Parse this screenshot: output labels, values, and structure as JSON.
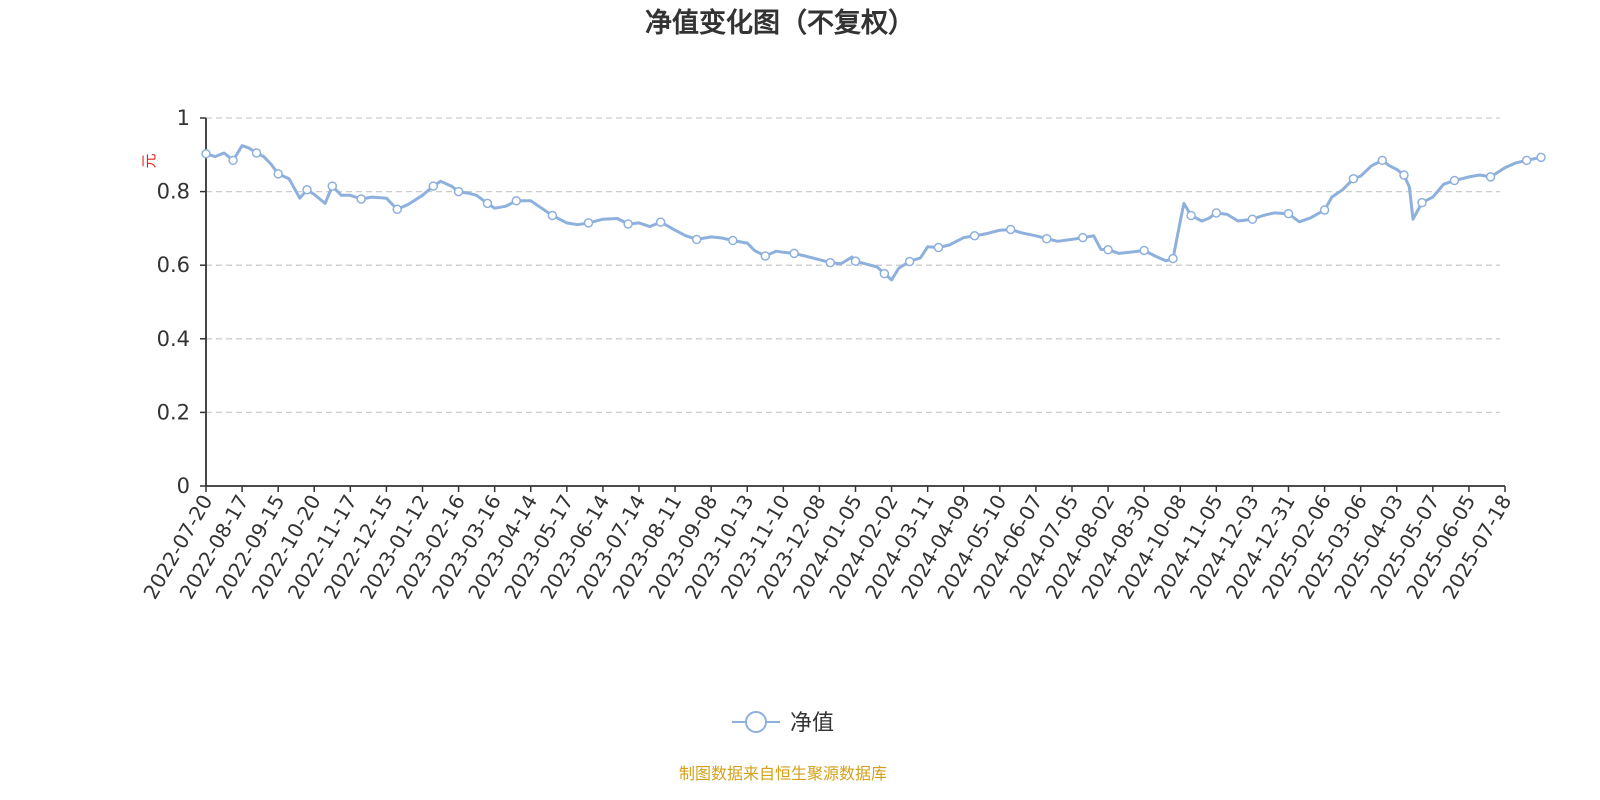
{
  "chart_data": {
    "type": "line",
    "title": "净值变化图（不复权）",
    "ylabel": "元",
    "ylim": [
      0,
      1
    ],
    "yticks": [
      "0",
      "0.2",
      "0.4",
      "0.6",
      "0.8",
      "1"
    ],
    "grid": true,
    "legend_position": "bottom",
    "categories": [
      "2022-07-20",
      "2022-08-17",
      "2022-09-15",
      "2022-10-20",
      "2022-11-17",
      "2022-12-15",
      "2023-01-12",
      "2023-02-16",
      "2023-03-16",
      "2023-04-14",
      "2023-05-17",
      "2023-06-14",
      "2023-07-14",
      "2023-08-11",
      "2023-09-08",
      "2023-10-13",
      "2023-11-10",
      "2023-12-08",
      "2024-01-05",
      "2024-02-02",
      "2024-03-11",
      "2024-04-09",
      "2024-05-10",
      "2024-06-07",
      "2024-07-05",
      "2024-08-02",
      "2024-08-30",
      "2024-10-08",
      "2024-11-05",
      "2024-12-03",
      "2024-12-31",
      "2025-02-06",
      "2025-03-06",
      "2025-04-03",
      "2025-05-07",
      "2025-06-05",
      "2025-07-18"
    ],
    "series": [
      {
        "name": "净值",
        "color": "#8eb0dc",
        "values": [
          [
            0,
            0.903
          ],
          [
            0.25,
            0.895
          ],
          [
            0.5,
            0.905
          ],
          [
            0.75,
            0.885
          ],
          [
            1,
            0.925
          ],
          [
            1.2,
            0.918
          ],
          [
            1.4,
            0.905
          ],
          [
            1.6,
            0.895
          ],
          [
            1.8,
            0.875
          ],
          [
            2,
            0.848
          ],
          [
            2.3,
            0.835
          ],
          [
            2.6,
            0.782
          ],
          [
            2.8,
            0.805
          ],
          [
            3,
            0.792
          ],
          [
            3.3,
            0.768
          ],
          [
            3.5,
            0.815
          ],
          [
            3.75,
            0.79
          ],
          [
            4,
            0.79
          ],
          [
            4.3,
            0.78
          ],
          [
            4.6,
            0.785
          ],
          [
            5,
            0.782
          ],
          [
            5.3,
            0.752
          ],
          [
            5.6,
            0.765
          ],
          [
            6,
            0.79
          ],
          [
            6.3,
            0.815
          ],
          [
            6.5,
            0.828
          ],
          [
            6.8,
            0.815
          ],
          [
            7,
            0.8
          ],
          [
            7.3,
            0.795
          ],
          [
            7.5,
            0.79
          ],
          [
            7.8,
            0.768
          ],
          [
            8,
            0.755
          ],
          [
            8.3,
            0.76
          ],
          [
            8.6,
            0.775
          ],
          [
            9,
            0.775
          ],
          [
            9.3,
            0.755
          ],
          [
            9.6,
            0.735
          ],
          [
            10,
            0.715
          ],
          [
            10.3,
            0.71
          ],
          [
            10.6,
            0.715
          ],
          [
            11,
            0.725
          ],
          [
            11.4,
            0.727
          ],
          [
            11.7,
            0.712
          ],
          [
            12,
            0.715
          ],
          [
            12.3,
            0.705
          ],
          [
            12.6,
            0.717
          ],
          [
            13,
            0.695
          ],
          [
            13.3,
            0.68
          ],
          [
            13.6,
            0.67
          ],
          [
            14,
            0.677
          ],
          [
            14.3,
            0.674
          ],
          [
            14.6,
            0.667
          ],
          [
            15,
            0.66
          ],
          [
            15.2,
            0.64
          ],
          [
            15.5,
            0.625
          ],
          [
            15.8,
            0.638
          ],
          [
            16,
            0.635
          ],
          [
            16.3,
            0.632
          ],
          [
            16.6,
            0.625
          ],
          [
            17,
            0.615
          ],
          [
            17.3,
            0.607
          ],
          [
            17.6,
            0.604
          ],
          [
            17.9,
            0.622
          ],
          [
            18,
            0.611
          ],
          [
            18.3,
            0.603
          ],
          [
            18.6,
            0.595
          ],
          [
            18.8,
            0.577
          ],
          [
            19,
            0.56
          ],
          [
            19.2,
            0.592
          ],
          [
            19.5,
            0.61
          ],
          [
            19.8,
            0.62
          ],
          [
            20,
            0.65
          ],
          [
            20.3,
            0.648
          ],
          [
            20.6,
            0.655
          ],
          [
            21,
            0.675
          ],
          [
            21.3,
            0.68
          ],
          [
            21.6,
            0.685
          ],
          [
            22,
            0.695
          ],
          [
            22.3,
            0.697
          ],
          [
            22.6,
            0.688
          ],
          [
            23,
            0.68
          ],
          [
            23.3,
            0.672
          ],
          [
            23.6,
            0.665
          ],
          [
            24,
            0.67
          ],
          [
            24.3,
            0.675
          ],
          [
            24.6,
            0.68
          ],
          [
            24.8,
            0.643
          ],
          [
            25,
            0.642
          ],
          [
            25.3,
            0.632
          ],
          [
            25.6,
            0.635
          ],
          [
            26,
            0.64
          ],
          [
            26.3,
            0.625
          ],
          [
            26.6,
            0.612
          ],
          [
            26.8,
            0.618
          ],
          [
            27,
            0.72
          ],
          [
            27.1,
            0.768
          ],
          [
            27.3,
            0.735
          ],
          [
            27.6,
            0.72
          ],
          [
            27.8,
            0.728
          ],
          [
            28,
            0.742
          ],
          [
            28.3,
            0.738
          ],
          [
            28.6,
            0.72
          ],
          [
            29,
            0.725
          ],
          [
            29.3,
            0.735
          ],
          [
            29.6,
            0.742
          ],
          [
            30,
            0.74
          ],
          [
            30.3,
            0.718
          ],
          [
            30.6,
            0.728
          ],
          [
            31,
            0.75
          ],
          [
            31.2,
            0.785
          ],
          [
            31.5,
            0.805
          ],
          [
            31.8,
            0.835
          ],
          [
            32,
            0.842
          ],
          [
            32.3,
            0.87
          ],
          [
            32.6,
            0.885
          ],
          [
            32.8,
            0.87
          ],
          [
            33,
            0.86
          ],
          [
            33.2,
            0.845
          ],
          [
            33.35,
            0.812
          ],
          [
            33.45,
            0.725
          ],
          [
            33.7,
            0.77
          ],
          [
            34,
            0.785
          ],
          [
            34.3,
            0.82
          ],
          [
            34.6,
            0.83
          ],
          [
            35,
            0.84
          ],
          [
            35.3,
            0.845
          ],
          [
            35.6,
            0.84
          ],
          [
            36,
            0.865
          ],
          [
            36.3,
            0.878
          ],
          [
            36.6,
            0.885
          ],
          [
            37,
            0.893
          ]
        ]
      }
    ]
  },
  "legend": {
    "label": "净值"
  },
  "footer": {
    "source": "制图数据来自恒生聚源数据库"
  },
  "colors": {
    "line": "#8eb0dc",
    "unit": "#e02020",
    "source": "#d4a017",
    "grid": "#cccccc",
    "axis": "#333333"
  }
}
